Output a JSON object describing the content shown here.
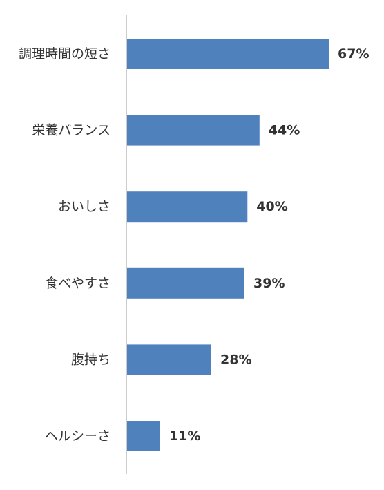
{
  "chart_data": {
    "type": "bar",
    "orientation": "horizontal",
    "categories": [
      "調理時間の短さ",
      "栄養バランス",
      "おいしさ",
      "食べやすさ",
      "腹持ち",
      "ヘルシーさ"
    ],
    "values": [
      67,
      44,
      40,
      39,
      28,
      11
    ],
    "value_labels": [
      "67%",
      "44%",
      "40%",
      "39%",
      "28%",
      "11%"
    ],
    "title": "",
    "xlabel": "",
    "ylabel": "",
    "unit": "%",
    "xlim": [
      0,
      67
    ],
    "grid": false,
    "legend": "none",
    "bar_color": "#4f81bd",
    "axis_color": "#999999",
    "text_color": "#333333"
  }
}
